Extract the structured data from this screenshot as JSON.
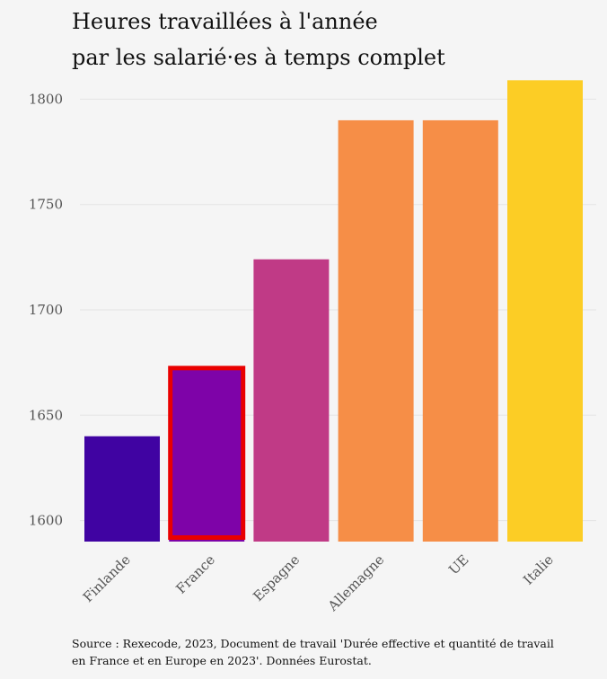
{
  "chart_data": {
    "type": "bar",
    "title_lines": [
      "Heures travaillées à l'année",
      "par les salarié·es à temps complet"
    ],
    "categories": [
      "Finlande",
      "France",
      "Espagne",
      "Allemagne",
      "UE",
      "Italie"
    ],
    "values": [
      1640,
      1673,
      1724,
      1790,
      1790,
      1809
    ],
    "colors": [
      "#4003a2",
      "#7e03a8",
      "#c03a86",
      "#f68e47",
      "#f68e47",
      "#fccd25"
    ],
    "highlight": {
      "category": "France",
      "color": "#e90000"
    },
    "yticks": [
      1600,
      1650,
      1700,
      1750,
      1800
    ],
    "ylim": [
      1590,
      1810
    ],
    "grid": true,
    "xlabel": "",
    "ylabel": ""
  },
  "source_lines": [
    "Source : Rexecode, 2023, Document de travail 'Durée effective et quantité de travail",
    "en France et en Europe en 2023'. Données Eurostat."
  ]
}
